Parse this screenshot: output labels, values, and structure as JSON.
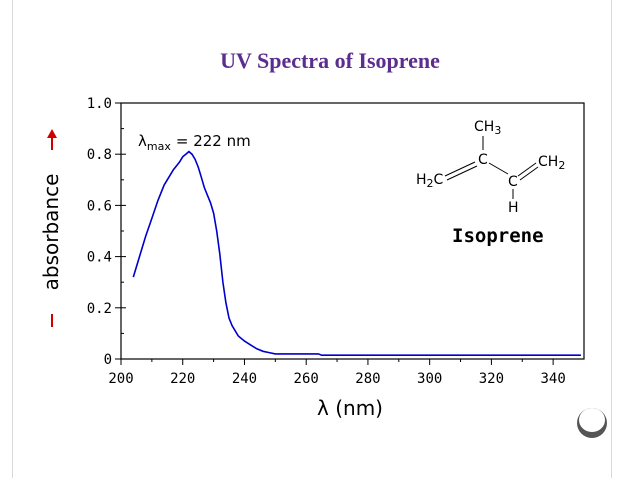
{
  "slide": {
    "title": "UV Spectra of Isoprene"
  },
  "chart_data": {
    "type": "line",
    "title": "",
    "xlabel": "λ (nm)",
    "ylabel": "absorbance",
    "xlim": [
      200,
      350
    ],
    "ylim": [
      0,
      1.0
    ],
    "x_ticks": [
      200,
      220,
      240,
      260,
      280,
      300,
      320,
      340
    ],
    "y_ticks": [
      0,
      0.2,
      0.4,
      0.6,
      0.8,
      1.0
    ],
    "x_tick_labels": [
      "200",
      "220",
      "240",
      "260",
      "280",
      "300",
      "320",
      "340"
    ],
    "y_tick_labels": [
      "0",
      "0.2",
      "0.4",
      "0.6",
      "0.8",
      "1.0"
    ],
    "grid": false,
    "series": [
      {
        "color": "#0000cc",
        "x": [
          204,
          206,
          208,
          210,
          212,
          214,
          216,
          217,
          218,
          219,
          220,
          221,
          222,
          223,
          224,
          225,
          226,
          227,
          228,
          229,
          230,
          231,
          232,
          233,
          234,
          235,
          236,
          237,
          238,
          240,
          242,
          244,
          246,
          248,
          250,
          255,
          260,
          264,
          265,
          270,
          280,
          300,
          320,
          340,
          349
        ],
        "y": [
          0.32,
          0.4,
          0.48,
          0.55,
          0.62,
          0.68,
          0.72,
          0.74,
          0.755,
          0.77,
          0.79,
          0.8,
          0.81,
          0.8,
          0.78,
          0.75,
          0.71,
          0.67,
          0.64,
          0.61,
          0.57,
          0.5,
          0.41,
          0.3,
          0.22,
          0.16,
          0.13,
          0.11,
          0.09,
          0.07,
          0.055,
          0.04,
          0.03,
          0.025,
          0.02,
          0.02,
          0.02,
          0.02,
          0.015,
          0.015,
          0.015,
          0.015,
          0.015,
          0.015,
          0.015
        ]
      }
    ],
    "annotations": {
      "lambda_max_symbol": "λ",
      "lambda_max_subscript": "max",
      "lambda_max_value": "= 222 nm"
    },
    "molecule": {
      "ch3": "CH3",
      "c_top": "C",
      "h2c": "H2C",
      "c_mid": "C",
      "ch2": "CH2",
      "h": "H",
      "name": "Isoprene"
    }
  }
}
